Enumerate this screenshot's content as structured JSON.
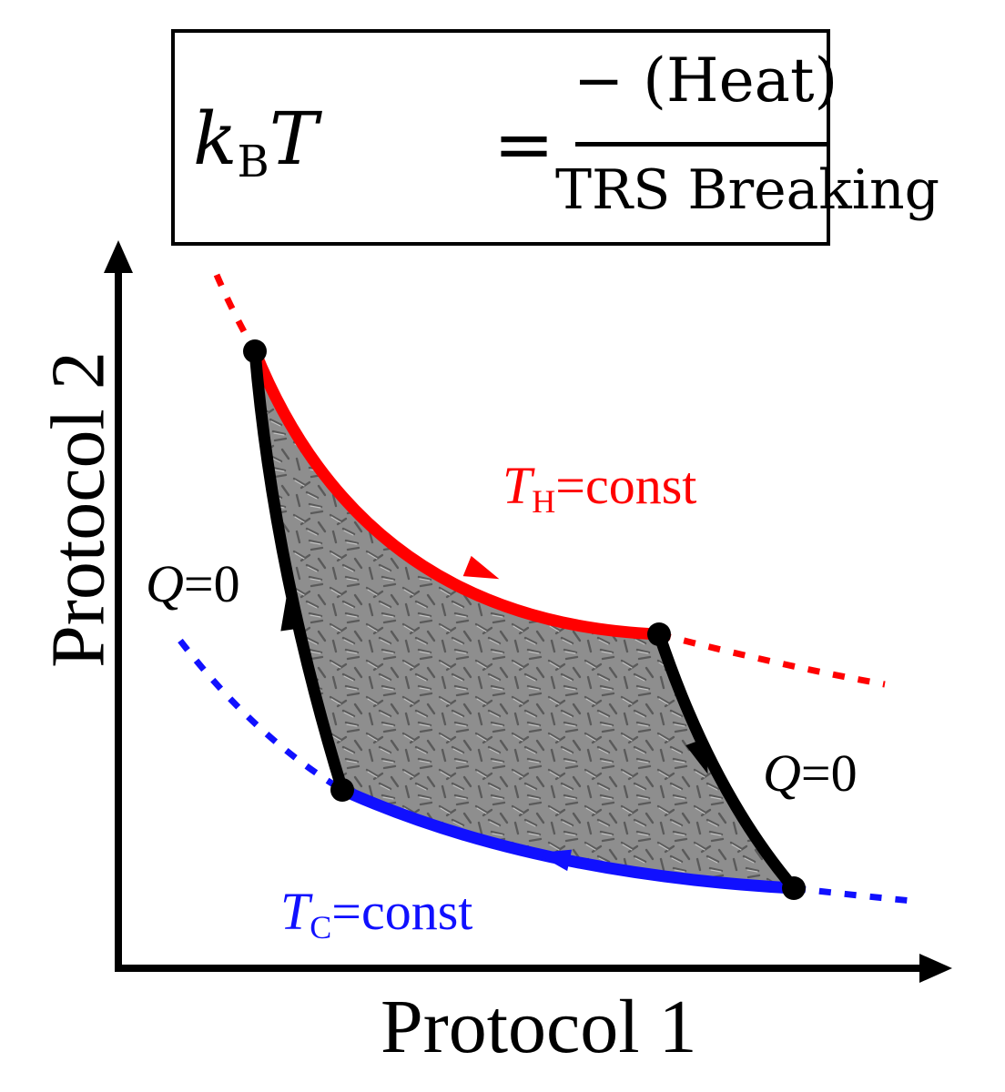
{
  "equation": {
    "lhs_symbol_k": "k",
    "lhs_subscript": "B",
    "lhs_symbol_T": "T",
    "equals": "=",
    "numerator": "− (Heat)",
    "denominator": "TRS Breaking"
  },
  "axes": {
    "x_label": "Protocol 1",
    "y_label": "Protocol 2"
  },
  "labels": {
    "hot_T": "T",
    "hot_sub": "H",
    "hot_rest": "=const",
    "cold_T": "T",
    "cold_sub": "C",
    "cold_rest": "=const",
    "adiabat_left_Q": "Q",
    "adiabat_left_rest": "=0",
    "adiabat_right_Q": "Q",
    "adiabat_right_rest": "=0"
  },
  "colors": {
    "hot": "#ff0000",
    "cold": "#1010ff",
    "adiabat": "#000000",
    "fill": "#8a8a8a"
  },
  "icons": {
    "direction": "arrowhead-icon",
    "vertex": "vertex-dot-icon"
  }
}
